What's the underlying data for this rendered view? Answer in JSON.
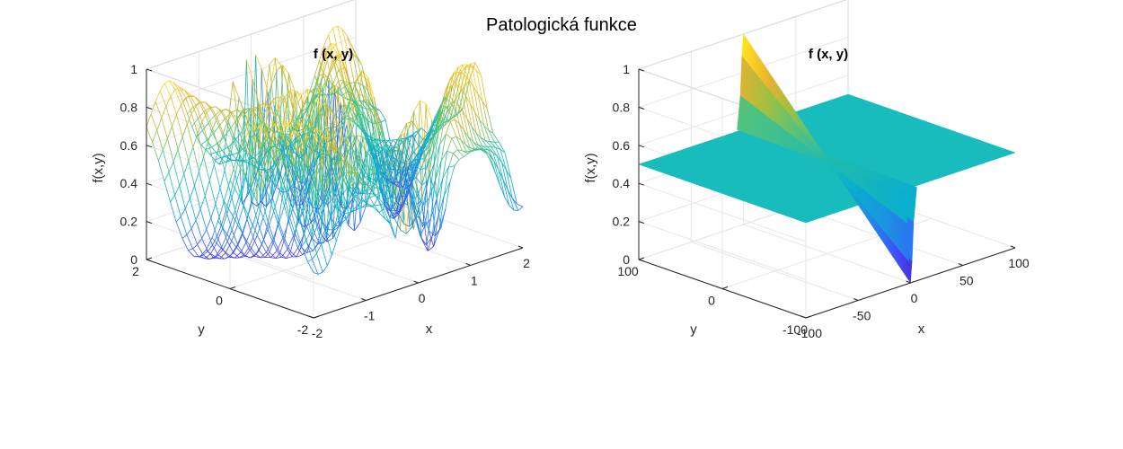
{
  "figure": {
    "title": "Patologická funkce"
  },
  "chart_data": [
    {
      "type": "surface",
      "style": "mesh",
      "title": "f (x, y)",
      "xlabel": "x",
      "ylabel": "y",
      "zlabel": "f(x,y)",
      "xlim": [
        -2,
        2
      ],
      "ylim": [
        -2,
        2
      ],
      "zlim": [
        0,
        1
      ],
      "xticks": [
        -2,
        -1,
        0,
        1,
        2
      ],
      "yticks": [
        -2,
        0,
        2
      ],
      "zticks": [
        0,
        0.2,
        0.4,
        0.6,
        0.8,
        1
      ],
      "xtick_labels": [
        "-2",
        "-1",
        "0",
        "1",
        "2"
      ],
      "ytick_labels": [
        "-2",
        "0",
        "2"
      ],
      "ztick_labels": [
        "0",
        "0.2",
        "0.4",
        "0.6",
        "0.8",
        "1"
      ],
      "grid": true,
      "colormap": "parula"
    },
    {
      "type": "surface",
      "style": "surf",
      "title": "f (x, y)",
      "xlabel": "x",
      "ylabel": "y",
      "zlabel": "f(x,y)",
      "xlim": [
        -100,
        100
      ],
      "ylim": [
        -100,
        100
      ],
      "zlim": [
        0,
        1
      ],
      "xticks": [
        -100,
        -50,
        0,
        50,
        100
      ],
      "yticks": [
        -100,
        0,
        100
      ],
      "zticks": [
        0,
        0.2,
        0.4,
        0.6,
        0.8,
        1
      ],
      "xtick_labels": [
        "-100",
        "-50",
        "0",
        "50",
        "100"
      ],
      "ytick_labels": [
        "-100",
        "0",
        "100"
      ],
      "ztick_labels": [
        "0",
        "0.2",
        "0.4",
        "0.6",
        "0.8",
        "1"
      ],
      "grid": true,
      "plateau_value": 0.5,
      "colormap": "parula"
    }
  ],
  "colors": {
    "parula": [
      "#3e26a8",
      "#4743f8",
      "#2d72f3",
      "#1a96de",
      "#08aecf",
      "#21bcab",
      "#59c378",
      "#a6bf3f",
      "#e6b131",
      "#fbd327",
      "#f9fb14"
    ],
    "plateau": "#18bcbc",
    "grid": "#e6e6e6",
    "axis": "#262626"
  }
}
